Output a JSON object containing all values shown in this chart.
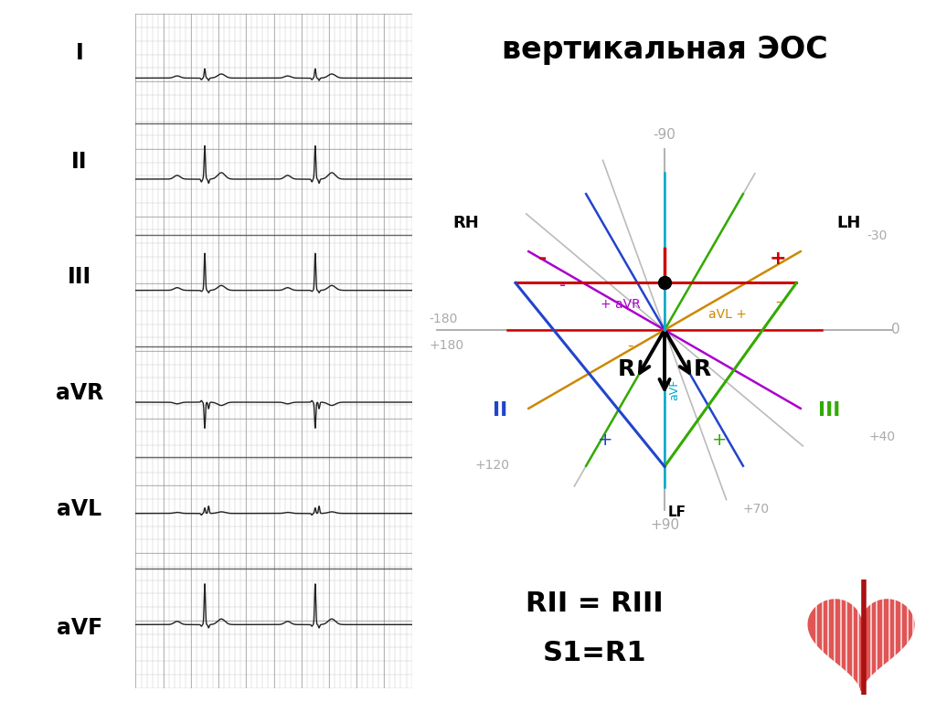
{
  "title": "вертикальная ЭОС",
  "title_fontsize": 24,
  "background_color": "#ffffff",
  "ecg_labels": [
    "I",
    "II",
    "III",
    "aVR",
    "aVL",
    "aVF"
  ],
  "lead_colors": {
    "I": "#cc0000",
    "II": "#2244cc",
    "III": "#33aa00",
    "aVR": "#aa00cc",
    "aVL": "#cc8800",
    "aVF": "#00aacc"
  },
  "lead_angles_deg": {
    "I": 0,
    "II": 60,
    "III": 120,
    "aVR": -150,
    "aVL": -30,
    "aVF": 90
  },
  "gray_axes_angles_deg": [
    40,
    70,
    120
  ],
  "axis_color": "#aaaaaa",
  "dot_color": "#000000",
  "dot_size": 100,
  "formula_text1": "RII = RIII",
  "formula_text2": "S1=R1",
  "formula_fontsize": 22
}
